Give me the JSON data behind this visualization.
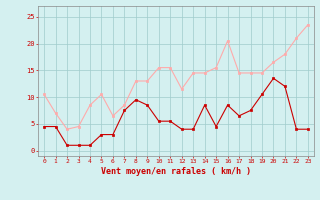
{
  "x": [
    0,
    1,
    2,
    3,
    4,
    5,
    6,
    7,
    8,
    9,
    10,
    11,
    12,
    13,
    14,
    15,
    16,
    17,
    18,
    19,
    20,
    21,
    22,
    23
  ],
  "rafales": [
    10.5,
    7,
    4,
    4.5,
    8.5,
    10.5,
    6.5,
    8.5,
    13,
    13,
    15.5,
    15.5,
    11.5,
    14.5,
    14.5,
    15.5,
    20.5,
    14.5,
    14.5,
    14.5,
    16.5,
    18,
    21,
    23.5
  ],
  "moyen": [
    4.5,
    4.5,
    1,
    1,
    1,
    3,
    3,
    7.5,
    9.5,
    8.5,
    5.5,
    5.5,
    4,
    4,
    8.5,
    4.5,
    8.5,
    6.5,
    7.5,
    10.5,
    13.5,
    12,
    4,
    4
  ],
  "color_rafales": "#ffaaaa",
  "color_moyen": "#cc0000",
  "bg_color": "#d4f0f0",
  "grid_color": "#a0cccc",
  "xlabel": "Vent moyen/en rafales ( km/h )",
  "xlabel_color": "#cc0000",
  "tick_color": "#cc0000",
  "spine_color": "#888888",
  "ylim": [
    -1,
    27
  ],
  "yticks": [
    0,
    5,
    10,
    15,
    20,
    25
  ],
  "xlim": [
    -0.5,
    23.5
  ]
}
